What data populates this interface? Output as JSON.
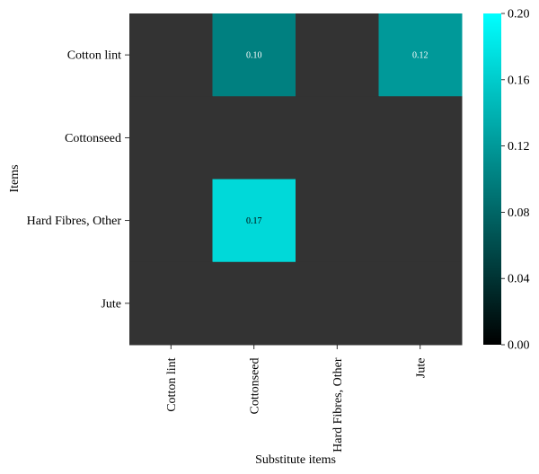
{
  "chart_data": {
    "type": "heatmap",
    "title": "",
    "xlabel": "Substitute items",
    "ylabel": "Items",
    "x_categories": [
      "Cotton lint",
      "Cottonseed",
      "Hard Fibres, Other",
      "Jute"
    ],
    "y_categories": [
      "Cotton lint",
      "Cottonseed",
      "Hard Fibres, Other",
      "Jute"
    ],
    "values": [
      [
        null,
        0.1,
        null,
        0.12
      ],
      [
        null,
        null,
        null,
        null
      ],
      [
        null,
        0.17,
        null,
        null
      ],
      [
        null,
        null,
        null,
        null
      ]
    ],
    "annotations": [
      [
        "",
        "0.10",
        "",
        "0.12"
      ],
      [
        "",
        "",
        "",
        ""
      ],
      [
        "",
        "0.17",
        "",
        ""
      ],
      [
        "",
        "",
        "",
        ""
      ]
    ],
    "missing_color": "#333333",
    "colorbar": {
      "min": 0.0,
      "max": 0.2,
      "ticks": [
        "0.00",
        "0.04",
        "0.08",
        "0.12",
        "0.16",
        "0.20"
      ],
      "colors": [
        "#000000",
        "#00ffff"
      ]
    }
  }
}
